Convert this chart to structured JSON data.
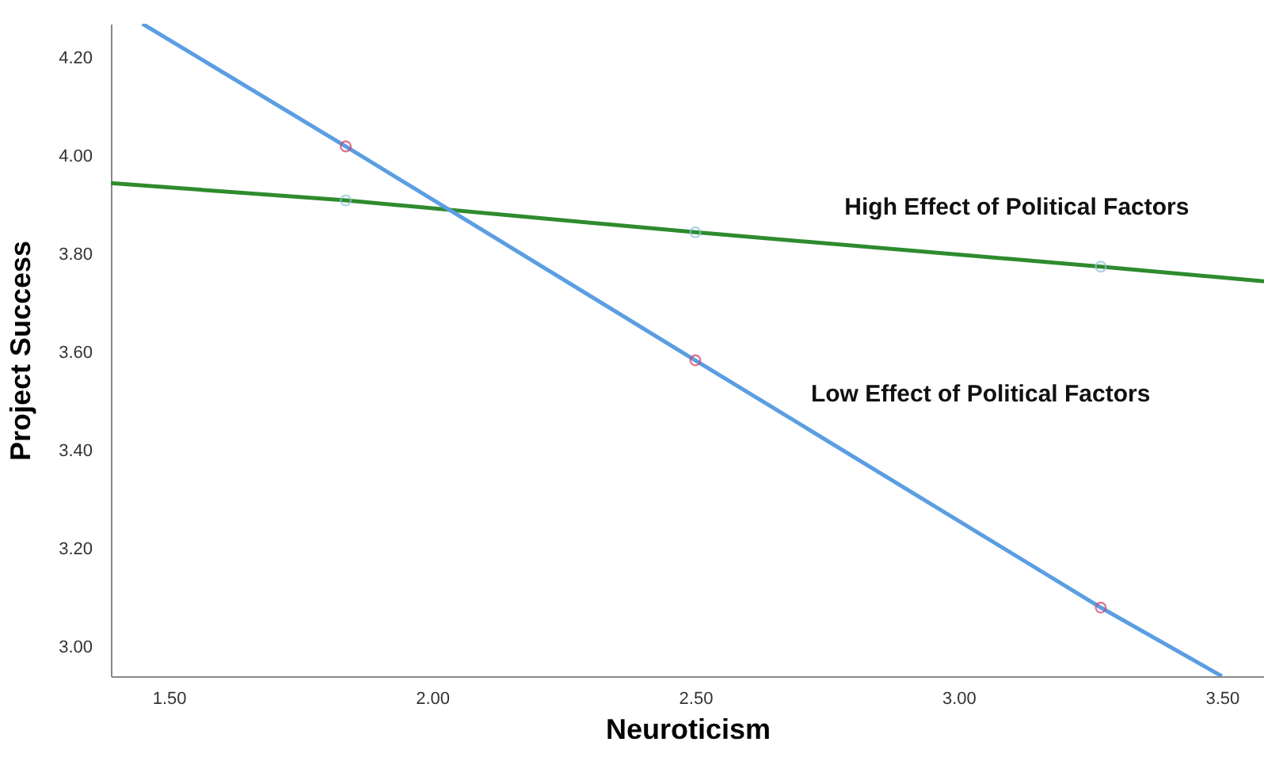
{
  "chart_data": {
    "type": "line",
    "xlabel": "Neuroticism",
    "ylabel": "Project Success",
    "xlim": [
      1.39,
      3.58
    ],
    "ylim": [
      2.94,
      4.27
    ],
    "xticks": [
      {
        "value": 1.5,
        "label": "1.50"
      },
      {
        "value": 2.0,
        "label": "2.00"
      },
      {
        "value": 2.5,
        "label": "2.50"
      },
      {
        "value": 3.0,
        "label": "3.00"
      },
      {
        "value": 3.5,
        "label": "3.50"
      }
    ],
    "yticks": [
      {
        "value": 3.0,
        "label": "3.00"
      },
      {
        "value": 3.2,
        "label": "3.20"
      },
      {
        "value": 3.4,
        "label": "3.40"
      },
      {
        "value": 3.6,
        "label": "3.60"
      },
      {
        "value": 3.8,
        "label": "3.80"
      },
      {
        "value": 4.0,
        "label": "4.00"
      },
      {
        "value": 4.2,
        "label": "4.20"
      }
    ],
    "grid": false,
    "series": [
      {
        "name": "High Effect of Political Factors",
        "color": "#2e8b2e",
        "marker": "none",
        "x": [
          1.39,
          1.836,
          2.5,
          3.27,
          3.58
        ],
        "values": [
          3.945,
          3.91,
          3.845,
          3.775,
          3.745
        ]
      },
      {
        "name": "Low Effect of Political Factors",
        "color": "#5b9ee2",
        "marker": "none",
        "x": [
          1.45,
          1.836,
          2.5,
          3.27,
          3.5
        ],
        "values": [
          4.27,
          4.02,
          3.584,
          3.08,
          2.94
        ]
      },
      {
        "type": "scatter",
        "color": "#8fc4d8",
        "marker": "circle",
        "x": [
          1.836,
          2.5,
          3.27
        ],
        "values": [
          3.91,
          3.845,
          3.775
        ]
      },
      {
        "type": "scatter",
        "color": "#d0406a",
        "marker": "circle",
        "x": [
          1.836,
          2.5,
          3.27
        ],
        "values": [
          4.02,
          3.584,
          3.08
        ]
      }
    ]
  }
}
